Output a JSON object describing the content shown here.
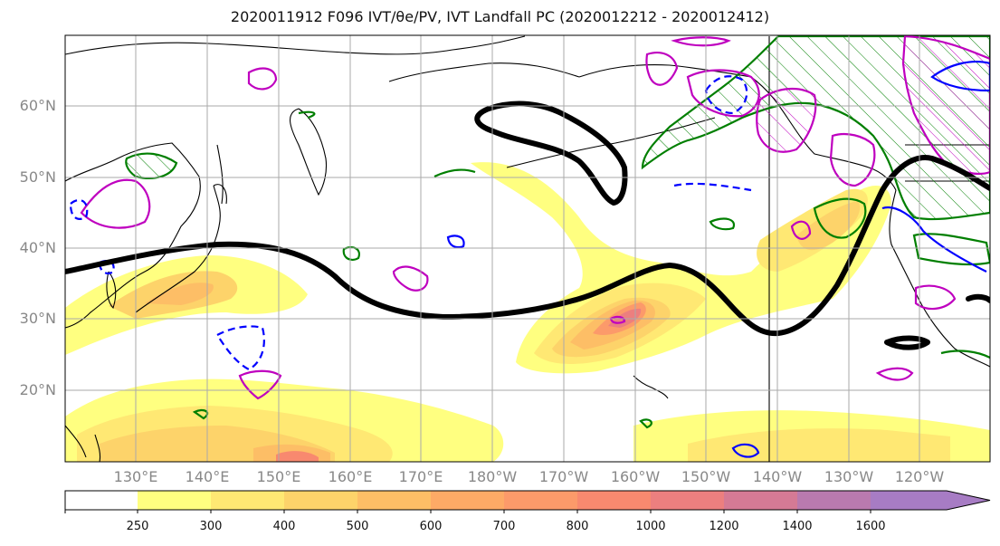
{
  "title": "2020011912 F096 IVT/θe/PV, IVT Landfall PC (2020012212 - 2020012412)",
  "lat_labels": [
    "60°N",
    "50°N",
    "40°N",
    "30°N",
    "20°N"
  ],
  "lon_labels": [
    "130°E",
    "140°E",
    "150°E",
    "160°E",
    "170°E",
    "180°W",
    "170°W",
    "160°W",
    "150°W",
    "140°W",
    "130°W",
    "120°W"
  ],
  "colorbar": {
    "ticks": [
      "250",
      "300",
      "400",
      "500",
      "600",
      "700",
      "800",
      "1000",
      "1200",
      "1400",
      "1600"
    ],
    "colors": [
      "#ffff80",
      "#ffe873",
      "#fdd36a",
      "#fdbe66",
      "#fdaa66",
      "#fc9a6a",
      "#f8896f",
      "#ec7f7f",
      "#d57a95",
      "#b97aaf",
      "#a77cc4"
    ]
  },
  "colors": {
    "thetae_contour": "#007f00",
    "pv_positive": "#bf00bf",
    "pv_negative": "#0000ff",
    "landfall_pc": "#000000",
    "grid": "#aaaaaa",
    "coastline": "#000000"
  }
}
